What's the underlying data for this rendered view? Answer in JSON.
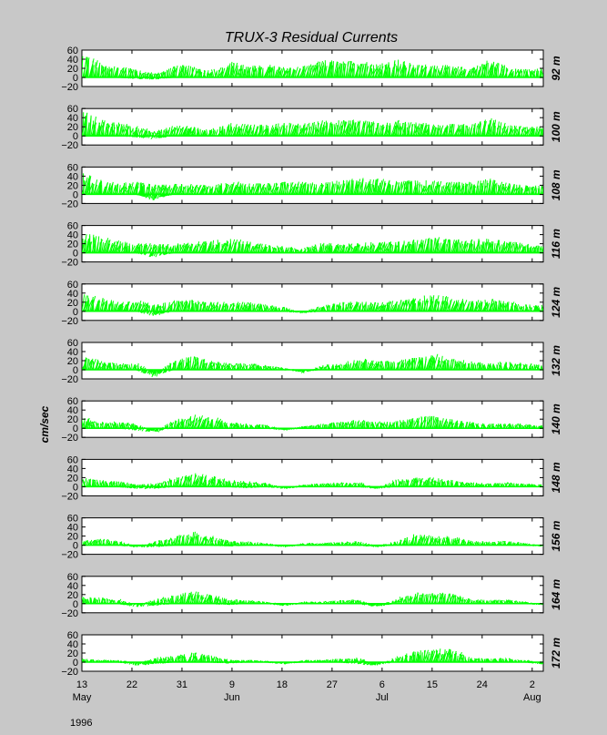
{
  "chart_data": {
    "type": "line",
    "title": "TRUX-3   Residual Currents",
    "ylabel": "cm/sec",
    "year": "1996",
    "ylim": [
      -20,
      60
    ],
    "yticks": [
      "60",
      "40",
      "20",
      "0",
      "−20"
    ],
    "xlim_day": [
      13,
      96
    ],
    "x_ticks": [
      {
        "day": 13,
        "label": "13",
        "month": "May"
      },
      {
        "day": 22,
        "label": "22"
      },
      {
        "day": 31,
        "label": "31"
      },
      {
        "day": 40,
        "label": "9",
        "month": "Jun"
      },
      {
        "day": 49,
        "label": "18"
      },
      {
        "day": 58,
        "label": "27"
      },
      {
        "day": 67,
        "label": "6",
        "month": "Jul"
      },
      {
        "day": 76,
        "label": "15"
      },
      {
        "day": 85,
        "label": "24"
      },
      {
        "day": 94,
        "label": "2",
        "month": "Aug"
      }
    ],
    "line_color": "#00ff00",
    "series": [
      {
        "name": "92 m",
        "amp": [
          55,
          30,
          25,
          18,
          8,
          28,
          25,
          15,
          35,
          25,
          30,
          22,
          25,
          40,
          35,
          40,
          30,
          42,
          28,
          30,
          25,
          22,
          40,
          25,
          18,
          20
        ],
        "dip": [
          0,
          0,
          0,
          -3,
          -5,
          0,
          0,
          0,
          0,
          0,
          0,
          0,
          0,
          0,
          0,
          0,
          0,
          0,
          0,
          0,
          0,
          0,
          0,
          0,
          0,
          0
        ]
      },
      {
        "name": "100 m",
        "amp": [
          55,
          35,
          30,
          20,
          10,
          25,
          20,
          15,
          30,
          25,
          25,
          30,
          28,
          35,
          35,
          38,
          30,
          35,
          30,
          30,
          28,
          25,
          40,
          25,
          20,
          22
        ],
        "dip": [
          0,
          0,
          0,
          -3,
          -8,
          0,
          0,
          0,
          0,
          0,
          0,
          0,
          0,
          0,
          0,
          0,
          0,
          0,
          0,
          0,
          0,
          0,
          0,
          0,
          0,
          0
        ]
      },
      {
        "name": "108 m",
        "amp": [
          52,
          30,
          25,
          28,
          20,
          25,
          22,
          20,
          30,
          25,
          25,
          28,
          28,
          30,
          30,
          38,
          35,
          30,
          32,
          30,
          28,
          28,
          35,
          25,
          20,
          20
        ],
        "dip": [
          0,
          0,
          0,
          0,
          -15,
          0,
          0,
          0,
          0,
          0,
          0,
          0,
          0,
          0,
          0,
          0,
          0,
          0,
          0,
          0,
          0,
          0,
          0,
          0,
          0,
          0
        ]
      },
      {
        "name": "116 m",
        "amp": [
          48,
          35,
          25,
          22,
          20,
          20,
          25,
          28,
          32,
          25,
          20,
          15,
          10,
          22,
          20,
          22,
          25,
          25,
          30,
          35,
          30,
          30,
          32,
          28,
          20,
          18
        ],
        "dip": [
          0,
          0,
          0,
          0,
          -12,
          0,
          0,
          0,
          0,
          0,
          0,
          0,
          0,
          0,
          0,
          0,
          0,
          0,
          0,
          0,
          0,
          0,
          0,
          0,
          0,
          0
        ]
      },
      {
        "name": "124 m",
        "amp": [
          40,
          30,
          20,
          25,
          15,
          25,
          25,
          20,
          22,
          20,
          15,
          10,
          -5,
          15,
          20,
          22,
          20,
          25,
          30,
          38,
          30,
          25,
          28,
          22,
          15,
          15
        ],
        "dip": [
          0,
          0,
          0,
          0,
          -12,
          0,
          0,
          0,
          0,
          0,
          0,
          0,
          -5,
          0,
          0,
          0,
          0,
          0,
          0,
          0,
          0,
          0,
          0,
          0,
          0,
          0
        ]
      },
      {
        "name": "132 m",
        "amp": [
          30,
          20,
          15,
          15,
          -15,
          25,
          30,
          20,
          15,
          15,
          10,
          5,
          -8,
          10,
          15,
          25,
          20,
          20,
          30,
          35,
          25,
          20,
          15,
          20,
          15,
          10
        ],
        "dip": [
          0,
          0,
          0,
          0,
          -18,
          0,
          0,
          0,
          0,
          0,
          0,
          0,
          -5,
          0,
          0,
          0,
          0,
          0,
          0,
          0,
          0,
          0,
          0,
          0,
          0,
          0
        ]
      },
      {
        "name": "140 m",
        "amp": [
          25,
          15,
          15,
          10,
          -10,
          20,
          30,
          25,
          15,
          10,
          8,
          -5,
          5,
          10,
          15,
          20,
          15,
          15,
          25,
          28,
          20,
          15,
          10,
          12,
          10,
          5
        ],
        "dip": [
          0,
          0,
          0,
          -5,
          -10,
          0,
          0,
          0,
          0,
          0,
          0,
          -5,
          0,
          0,
          0,
          0,
          0,
          0,
          0,
          0,
          0,
          0,
          0,
          0,
          0,
          0
        ]
      },
      {
        "name": "148 m",
        "amp": [
          20,
          15,
          12,
          5,
          8,
          20,
          30,
          25,
          15,
          12,
          10,
          -5,
          5,
          8,
          10,
          10,
          -5,
          15,
          22,
          20,
          15,
          10,
          8,
          10,
          8,
          5
        ],
        "dip": [
          0,
          0,
          0,
          -5,
          -5,
          0,
          0,
          0,
          0,
          -3,
          0,
          -5,
          0,
          0,
          0,
          0,
          -5,
          0,
          0,
          0,
          0,
          0,
          0,
          0,
          0,
          0
        ]
      },
      {
        "name": "156 m",
        "amp": [
          10,
          15,
          10,
          -5,
          10,
          20,
          30,
          20,
          10,
          8,
          5,
          -5,
          5,
          5,
          8,
          10,
          -5,
          10,
          25,
          20,
          20,
          10,
          8,
          10,
          5,
          -3
        ],
        "dip": [
          0,
          0,
          0,
          -5,
          -5,
          0,
          0,
          0,
          -3,
          0,
          0,
          -5,
          0,
          0,
          0,
          0,
          -5,
          0,
          0,
          0,
          0,
          0,
          0,
          0,
          0,
          -3
        ]
      },
      {
        "name": "164 m",
        "amp": [
          15,
          15,
          10,
          -5,
          10,
          20,
          28,
          20,
          10,
          8,
          5,
          -5,
          5,
          5,
          8,
          10,
          -8,
          10,
          25,
          25,
          25,
          10,
          8,
          10,
          5,
          -3
        ],
        "dip": [
          0,
          0,
          0,
          -8,
          -5,
          0,
          0,
          0,
          -3,
          0,
          0,
          -5,
          0,
          0,
          0,
          0,
          -8,
          0,
          0,
          0,
          0,
          0,
          0,
          0,
          0,
          -3
        ]
      },
      {
        "name": "172 m",
        "amp": [
          8,
          5,
          5,
          -5,
          10,
          15,
          22,
          15,
          5,
          5,
          3,
          -5,
          5,
          5,
          8,
          10,
          -8,
          10,
          25,
          30,
          30,
          10,
          8,
          10,
          5,
          -5
        ],
        "dip": [
          0,
          0,
          0,
          -8,
          -5,
          0,
          0,
          0,
          -3,
          0,
          0,
          -5,
          0,
          0,
          0,
          -5,
          -8,
          0,
          0,
          0,
          0,
          0,
          0,
          0,
          0,
          -5
        ]
      }
    ]
  }
}
